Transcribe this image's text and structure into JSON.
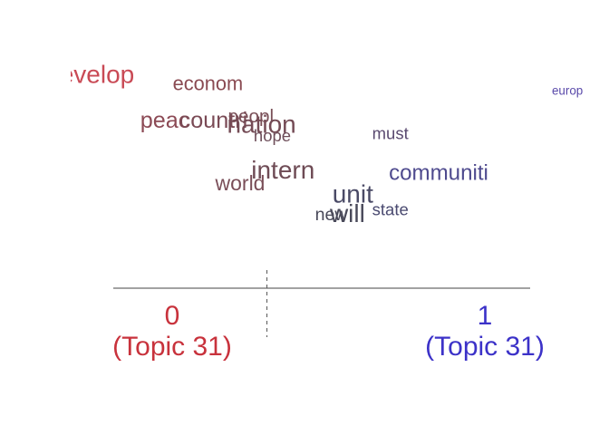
{
  "chart_data": {
    "type": "scatter",
    "xlim": [
      0,
      1
    ],
    "left_label": {
      "value": "0",
      "topic": "(Topic 31)",
      "color": "#c8323c"
    },
    "right_label": {
      "value": "1",
      "topic": "(Topic 31)",
      "color": "#3c32c8"
    },
    "midline_x": 0.43,
    "words": [
      {
        "text": "develop",
        "x": 0.1,
        "y": 0.9,
        "size": 1.0,
        "color": "#c94a55"
      },
      {
        "text": "econom",
        "x": 0.32,
        "y": 0.86,
        "size": 0.78,
        "color": "#8a4a52"
      },
      {
        "text": "europ",
        "x": 0.99,
        "y": 0.83,
        "size": 0.48,
        "color": "#5a4aaa"
      },
      {
        "text": "peac",
        "x": 0.24,
        "y": 0.69,
        "size": 0.9,
        "color": "#8c4a55"
      },
      {
        "text": "countri",
        "x": 0.33,
        "y": 0.69,
        "size": 0.9,
        "color": "#7a4a55"
      },
      {
        "text": "peopl",
        "x": 0.4,
        "y": 0.71,
        "size": 0.74,
        "color": "#7a5058"
      },
      {
        "text": "nation",
        "x": 0.42,
        "y": 0.67,
        "size": 1.0,
        "color": "#744b55"
      },
      {
        "text": "hope",
        "x": 0.44,
        "y": 0.62,
        "size": 0.66,
        "color": "#6e4e5a"
      },
      {
        "text": "must",
        "x": 0.66,
        "y": 0.63,
        "size": 0.66,
        "color": "#5a4a70"
      },
      {
        "text": "intern",
        "x": 0.46,
        "y": 0.46,
        "size": 1.0,
        "color": "#6e4b55"
      },
      {
        "text": "communiti",
        "x": 0.75,
        "y": 0.45,
        "size": 0.86,
        "color": "#4e4a8e"
      },
      {
        "text": "world",
        "x": 0.38,
        "y": 0.4,
        "size": 0.82,
        "color": "#7a4e58"
      },
      {
        "text": "unit",
        "x": 0.59,
        "y": 0.35,
        "size": 1.0,
        "color": "#4a4a66"
      },
      {
        "text": "state",
        "x": 0.66,
        "y": 0.28,
        "size": 0.66,
        "color": "#4a4a70"
      },
      {
        "text": "new",
        "x": 0.55,
        "y": 0.26,
        "size": 0.7,
        "color": "#4a4a5a"
      },
      {
        "text": "will",
        "x": 0.58,
        "y": 0.26,
        "size": 1.0,
        "color": "#4a4a5a"
      }
    ]
  }
}
